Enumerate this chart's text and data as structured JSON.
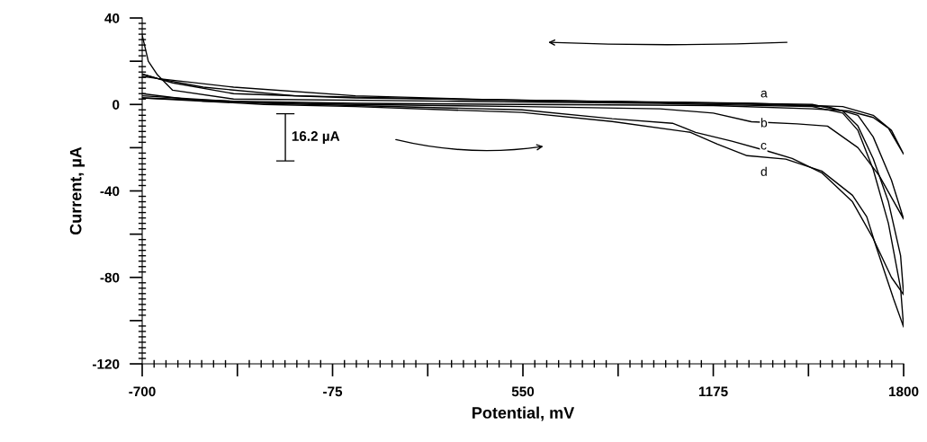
{
  "chart_data": {
    "type": "line",
    "xlabel": "Potential, mV",
    "ylabel": "Current, µA",
    "xlim": [
      -700,
      1800
    ],
    "ylim": [
      -120,
      40
    ],
    "xticks": [
      -700,
      {
        "value": -387.5,
        "label": null
      },
      -75,
      {
        "value": 237.5,
        "label": null
      },
      550,
      {
        "value": 862.5,
        "label": null
      },
      1175,
      {
        "value": 1487.5,
        "label": null
      },
      1800
    ],
    "yticks": [
      -120,
      {
        "value": -100,
        "label": null
      },
      -80,
      {
        "value": -60,
        "label": null
      },
      -40,
      {
        "value": -20,
        "label": null
      },
      0,
      {
        "value": 20,
        "label": null
      },
      40
    ],
    "grid": false,
    "marker": "none",
    "line_style": "solid",
    "series": [
      {
        "color": "#000000",
        "x": [
          -700,
          -400,
          0,
          550,
          1175,
          1500,
          1620,
          1700,
          1750,
          1800,
          1760,
          1700,
          1600,
          1300,
          800,
          0,
          -400,
          -600,
          -700
        ],
        "values": [
          3,
          1.5,
          0.5,
          0,
          -0.5,
          -2,
          -3,
          -6,
          -11,
          -23,
          -12,
          -5,
          -1,
          0.5,
          1.5,
          3,
          5,
          10,
          14
        ]
      },
      {
        "color": "#000000",
        "x": [
          -700,
          -500,
          0,
          550,
          1000,
          1175,
          1300,
          1450,
          1550,
          1650,
          1720,
          1800,
          1760,
          1700,
          1650,
          1550,
          1200,
          500,
          0,
          -400,
          -650,
          -700
        ],
        "values": [
          5,
          1.5,
          0,
          -1,
          -2,
          -4,
          -8,
          -9,
          -10,
          -20,
          -33,
          -53,
          -35,
          -15,
          -5,
          -1,
          0.5,
          2,
          4,
          8,
          12,
          13
        ]
      },
      {
        "color": "#000000",
        "x": [
          -700,
          -300,
          0,
          547,
          843,
          1041,
          1117,
          1236,
          1354,
          1434,
          1531,
          1632,
          1700,
          1760,
          1800,
          1790,
          1750,
          1700,
          1650,
          1600,
          1500,
          1000,
          300,
          -200,
          -500,
          -650,
          -700
        ],
        "values": [
          4,
          0.5,
          -0.5,
          -2.5,
          -6.6,
          -8.7,
          -12.9,
          -17,
          -21.6,
          -25,
          -31.6,
          -45,
          -62,
          -80,
          -88,
          -70,
          -45,
          -25,
          -10,
          -3,
          0,
          1,
          2.5,
          4,
          8,
          12,
          14
        ]
      },
      {
        "color": "#000000",
        "x": [
          -700,
          -300,
          0,
          547,
          843,
          1100,
          1188,
          1286,
          1413,
          1531,
          1632,
          1679,
          1708,
          1767,
          1800,
          1790,
          1750,
          1700,
          1650,
          1600,
          1500,
          1000,
          300,
          -400,
          -600,
          -650,
          -680,
          -700
        ],
        "values": [
          3,
          0,
          -1,
          -3.7,
          -7.9,
          -12.9,
          -18.3,
          -23.7,
          -25.3,
          -30.8,
          -42,
          -52,
          -65,
          -90,
          -103,
          -85,
          -55,
          -30,
          -12,
          -4,
          -1,
          0.5,
          1.5,
          2.5,
          6.6,
          13.7,
          20,
          32
        ]
      }
    ],
    "annotations": [
      "a",
      "b",
      "c",
      "d",
      "16.2 µA"
    ]
  }
}
